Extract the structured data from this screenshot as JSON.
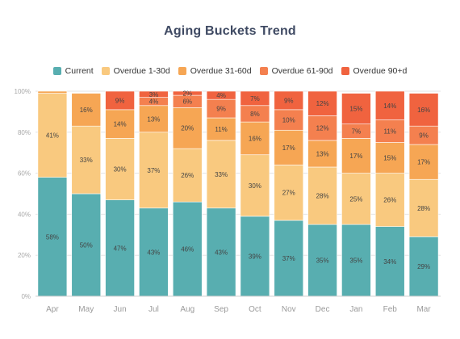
{
  "chart_data": {
    "type": "bar",
    "stacked": true,
    "percent": true,
    "title": "Aging Buckets Trend",
    "categories": [
      "Apr",
      "May",
      "Jun",
      "Jul",
      "Aug",
      "Sep",
      "Oct",
      "Nov",
      "Dec",
      "Jan",
      "Feb",
      "Mar"
    ],
    "series": [
      {
        "name": "Current",
        "color": "#58aeb0",
        "values": [
          58,
          50,
          47,
          43,
          46,
          43,
          39,
          37,
          35,
          35,
          34,
          29
        ]
      },
      {
        "name": "Overdue 1-30d",
        "color": "#f9c97f",
        "values": [
          41,
          33,
          30,
          37,
          26,
          33,
          30,
          27,
          28,
          25,
          26,
          28
        ]
      },
      {
        "name": "Overdue 31-60d",
        "color": "#f6a654",
        "values": [
          1,
          16,
          14,
          13,
          20,
          11,
          16,
          17,
          13,
          17,
          15,
          17
        ]
      },
      {
        "name": "Overdue 61-90d",
        "color": "#f4804f",
        "values": [
          0,
          0,
          0,
          4,
          6,
          9,
          8,
          10,
          12,
          7,
          11,
          9
        ]
      },
      {
        "name": "Overdue 90+d",
        "color": "#f0633f",
        "values": [
          0,
          0,
          9,
          3,
          2,
          4,
          7,
          9,
          12,
          15,
          14,
          16
        ]
      }
    ],
    "ylim": [
      0,
      100
    ],
    "yticks": [
      "0%",
      "20%",
      "40%",
      "60%",
      "80%",
      "100%"
    ],
    "grid": true,
    "legend_position": "top"
  }
}
